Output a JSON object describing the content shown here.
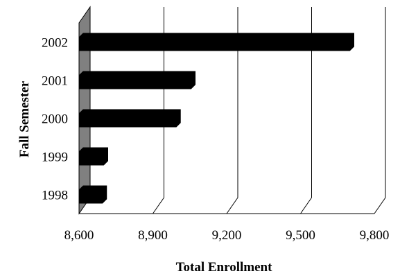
{
  "chart_data": {
    "type": "bar",
    "orientation": "horizontal",
    "style": "3d",
    "title": "",
    "xlabel": "Total Enrollment",
    "ylabel": "Fall Semester",
    "categories": [
      "2002",
      "2001",
      "2000",
      "1999",
      "1998"
    ],
    "values": [
      9700,
      9055,
      8995,
      8700,
      8695
    ],
    "xlim": [
      8600,
      9800
    ],
    "xticks": [
      8600,
      8900,
      9200,
      9500,
      9800
    ],
    "xtick_labels": [
      "8,600",
      "8,900",
      "9,200",
      "9,500",
      "9,800"
    ],
    "grid": true,
    "legend": "none",
    "colors": {
      "bar": "#000000",
      "wall": "#808080",
      "grid": "#000000",
      "background": "#ffffff"
    }
  }
}
